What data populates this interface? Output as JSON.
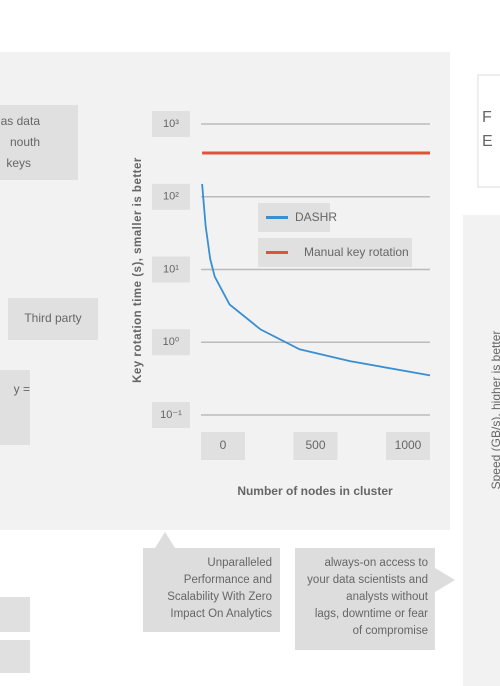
{
  "chart_data": {
    "type": "line",
    "ylabel": "Key rotation time (s), smaller is better",
    "xlabel": "Number of nodes in cluster",
    "x": [
      5,
      20,
      40,
      60,
      125,
      260,
      430,
      650,
      1000
    ],
    "series": [
      {
        "name": "DASHR",
        "color": "#3a8fd0",
        "values": [
          150,
          40,
          14,
          8,
          3.3,
          1.5,
          0.8,
          0.55,
          0.35
        ]
      },
      {
        "name": "Manual key rotation",
        "color": "#e0533a",
        "values": [
          400,
          400,
          400,
          400,
          400,
          400,
          400,
          400,
          400
        ]
      }
    ],
    "xlim": [
      0,
      1000
    ],
    "xticks": [
      0,
      500,
      1000
    ],
    "ylim": [
      0.1,
      1000
    ],
    "log_y": true,
    "yticks": [
      {
        "value": 0.1,
        "label": "10⁻¹"
      },
      {
        "value": 1,
        "label": "10⁰"
      },
      {
        "value": 10,
        "label": "10¹"
      },
      {
        "value": 100,
        "label": "10²"
      },
      {
        "value": 1000,
        "label": "10³"
      }
    ],
    "grid": true
  },
  "left_texts": {
    "box1": [
      "as data",
      "nouth",
      "keys"
    ],
    "box2": "Third party",
    "box3": "y ="
  },
  "callouts": [
    [
      "Unparalleled",
      "Performance and",
      "Scalability With Zero",
      "Impact On Analytics"
    ],
    [
      "always-on access to",
      "your data scientists and",
      "analysts without",
      "lags, downtime or fear",
      "of compromise"
    ]
  ],
  "right_panel": {
    "box_lines": [
      "F",
      "E"
    ],
    "axis_label": "Speed (GB/s), higher is better"
  }
}
